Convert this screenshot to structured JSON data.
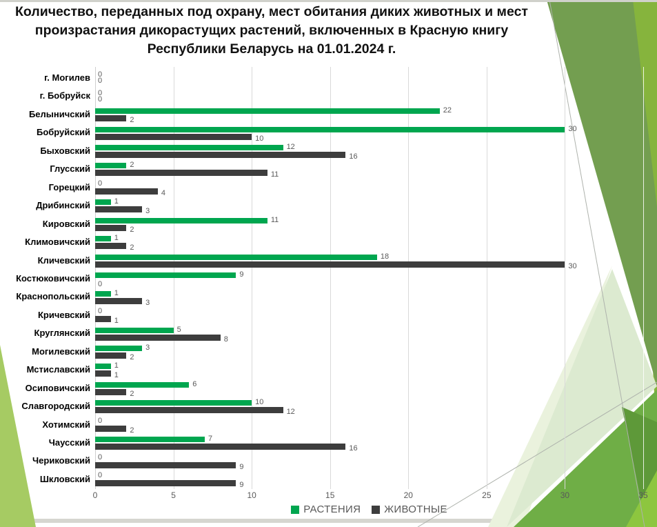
{
  "slide": {
    "background": "#ffffff",
    "top_strip_color": "#d0d1cb",
    "bottom_strip_color": "#d6d6d0",
    "decor_colors": {
      "bright_green_top": "#86b43d",
      "medium_green": "#739e50",
      "pale_green": "#dcead0",
      "pale_green_light": "#eaf2dd",
      "bottom_medium_green": "#6fae46",
      "dark_band_green": "#5e9939",
      "corner_bright_green": "#8dc63f",
      "left_wedge_green": "#a6cb63",
      "thin_line_gray": "#aeb2ac"
    }
  },
  "chart_data": {
    "type": "bar",
    "orientation": "horizontal",
    "title": "Количество, переданных под охрану, мест обитания диких животных и мест произрастания дикорастущих растений, включенных в Красную книгу Республики Беларусь на 01.01.2024 г.",
    "title_lines": [
      "Количество, переданных под охрану, мест обитания диких животных и мест",
      "произрастания дикорастущих растений, включенных в Красную книгу",
      "Республики Беларусь на 01.01.2024 г."
    ],
    "categories": [
      "г. Могилев",
      "г. Бобруйск",
      "Белыничский",
      "Бобруйский",
      "Быховский",
      "Глусский",
      "Горецкий",
      "Дрибинский",
      "Кировский",
      "Климовичский",
      "Кличевский",
      "Костюковичский",
      "Краснопольский",
      "Кричевский",
      "Круглянский",
      "Могилевский",
      "Мстиславский",
      "Осиповичский",
      "Славгородский",
      "Хотимский",
      "Чаусский",
      "Чериковский",
      "Шкловский"
    ],
    "series": [
      {
        "name": "РАСТЕНИЯ",
        "color": "#00a64f",
        "values": [
          0,
          0,
          22,
          30,
          12,
          2,
          0,
          1,
          11,
          1,
          18,
          9,
          1,
          0,
          5,
          3,
          1,
          6,
          10,
          0,
          7,
          0,
          0
        ]
      },
      {
        "name": "ЖИВОТНЫЕ",
        "color": "#3d3d3d",
        "values": [
          0,
          0,
          2,
          10,
          16,
          11,
          4,
          3,
          2,
          2,
          30,
          0,
          3,
          1,
          8,
          2,
          1,
          2,
          12,
          2,
          16,
          9,
          9
        ]
      }
    ],
    "x_ticks": [
      0,
      5,
      10,
      15,
      20,
      25,
      30,
      35
    ],
    "xlim": [
      0,
      35
    ],
    "grid": true,
    "value_labels": true,
    "legend_position": "bottom",
    "gridline_color": "#d9d9d9",
    "axis_text_color": "#595959",
    "category_text_color": "#000000"
  }
}
